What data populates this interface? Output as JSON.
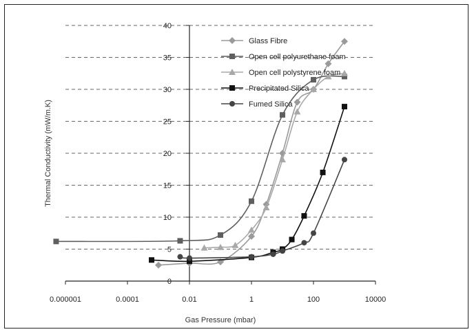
{
  "chart_data": {
    "type": "line",
    "title": "",
    "xlabel": "Gas Pressure (mbar)",
    "ylabel": "Thermal Conductivity (mW/m.K)",
    "xscale": "log",
    "xlim": [
      1e-06,
      10000
    ],
    "ylim": [
      0,
      40
    ],
    "x_ticks": [
      1e-06,
      0.0001,
      0.01,
      1,
      100,
      10000
    ],
    "x_tick_labels": [
      "0.000001",
      "0.0001",
      "0.01",
      "1",
      "100",
      "10000"
    ],
    "y_ticks": [
      0,
      5,
      10,
      15,
      20,
      25,
      30,
      35,
      40
    ],
    "y_tick_labels": [
      "0",
      "5",
      "10",
      "15",
      "20",
      "25",
      "30",
      "35",
      "40"
    ],
    "grid": "horizontal-dashed",
    "legend_position": "top-center",
    "series": [
      {
        "name": "Glass Fibre",
        "marker": "diamond",
        "color": "#9a9a9a",
        "points": [
          [
            0.001,
            2.5
          ],
          [
            0.01,
            2.8
          ],
          [
            0.1,
            3.0
          ],
          [
            1,
            7.0
          ],
          [
            3,
            12
          ],
          [
            10,
            20
          ],
          [
            30,
            28
          ],
          [
            100,
            30
          ],
          [
            300,
            34
          ],
          [
            1000,
            37.5
          ]
        ]
      },
      {
        "name": "Open cell polyurethane foam",
        "marker": "square",
        "color": "#5f5f5f",
        "points": [
          [
            5e-07,
            6.2
          ],
          [
            0.005,
            6.3
          ],
          [
            0.1,
            7.2
          ],
          [
            1,
            12.5
          ],
          [
            10,
            26
          ],
          [
            100,
            31.5
          ],
          [
            1000,
            32
          ]
        ]
      },
      {
        "name": "Open cell polystyrene foam",
        "marker": "triangle",
        "color": "#a8a8a8",
        "points": [
          [
            0.03,
            5.2
          ],
          [
            0.1,
            5.3
          ],
          [
            0.3,
            5.6
          ],
          [
            1,
            8.0
          ],
          [
            3,
            11.5
          ],
          [
            10,
            19
          ],
          [
            30,
            26.5
          ],
          [
            100,
            30
          ],
          [
            300,
            32
          ],
          [
            1000,
            32.5
          ]
        ]
      },
      {
        "name": "Precipitated Silica",
        "marker": "square",
        "color": "#111111",
        "points": [
          [
            0.0006,
            3.3
          ],
          [
            0.01,
            3.1
          ],
          [
            1,
            3.7
          ],
          [
            5,
            4.5
          ],
          [
            10,
            5.0
          ],
          [
            20,
            6.5
          ],
          [
            50,
            10.2
          ],
          [
            200,
            17
          ],
          [
            1000,
            27.3
          ]
        ]
      },
      {
        "name": "Fumed Silica",
        "marker": "circle",
        "color": "#444444",
        "points": [
          [
            0.005,
            3.8
          ],
          [
            0.01,
            3.6
          ],
          [
            1,
            3.8
          ],
          [
            5,
            4.2
          ],
          [
            10,
            4.7
          ],
          [
            50,
            6.0
          ],
          [
            100,
            7.5
          ],
          [
            1000,
            19
          ]
        ]
      }
    ]
  }
}
